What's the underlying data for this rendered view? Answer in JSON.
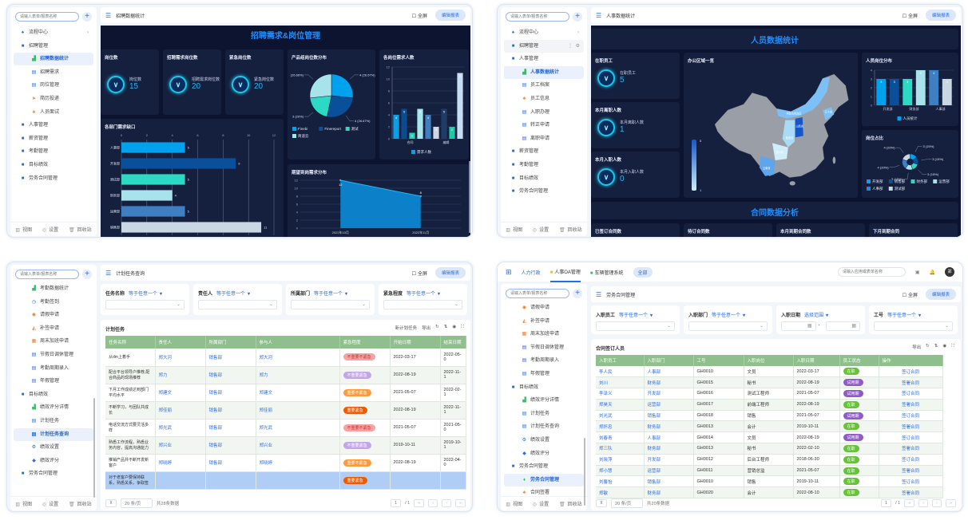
{
  "colors": {
    "accent": "#2d6be0",
    "dash_bg": "#0c1430",
    "card_bg": "#151f3e",
    "title_blue": "#1f8dff",
    "table_header": "#8fbf8c"
  },
  "common": {
    "search_placeholder": "请输入表单/报表名称",
    "fullscreen": "全屏",
    "footer": [
      "视图",
      "设置",
      "回收站"
    ]
  },
  "panel1": {
    "header_title": "招聘数据统计",
    "edit_button": "编辑报表",
    "sidebar": [
      {
        "label": "流程中心",
        "type": "link",
        "icon": "flow-icon",
        "chevron": "›"
      },
      {
        "label": "招聘管理",
        "type": "folder",
        "icon": "folder-icon"
      },
      {
        "label": "招聘数据统计",
        "type": "child",
        "icon": "chart-icon",
        "active": true
      },
      {
        "label": "招聘需求",
        "type": "child",
        "icon": "doc-icon"
      },
      {
        "label": "岗位管理",
        "type": "child",
        "icon": "doc-icon"
      },
      {
        "label": "简历投递",
        "type": "child",
        "icon": "send-icon"
      },
      {
        "label": "人员面试",
        "type": "child",
        "icon": "people-icon"
      },
      {
        "label": "人事管理",
        "type": "folder",
        "icon": "folder-icon"
      },
      {
        "label": "薪资管理",
        "type": "folder",
        "icon": "folder-icon"
      },
      {
        "label": "考勤管理",
        "type": "folder",
        "icon": "folder-icon"
      },
      {
        "label": "目标绩效",
        "type": "folder",
        "icon": "folder-icon"
      },
      {
        "label": "劳务合同管理",
        "type": "folder",
        "icon": "folder-icon"
      }
    ],
    "dash_title": "招聘需求&岗位管理",
    "kpis": [
      {
        "title": "岗位数",
        "label": "岗位数",
        "value": "15"
      },
      {
        "title": "招聘需求岗位数",
        "label": "招聘需求岗位数",
        "value": "20"
      },
      {
        "title": "紧急岗位数",
        "label": "紧急岗位数",
        "value": "20"
      }
    ]
  },
  "panel2": {
    "header_title": "人事数据统计",
    "edit_button": "编辑报表",
    "sidebar": [
      {
        "label": "流程中心",
        "type": "link",
        "icon": "flow-icon",
        "chevron": "›"
      },
      {
        "label": "招聘管理",
        "type": "folder",
        "icon": "folder-icon",
        "hover": true
      },
      {
        "label": "人事管理",
        "type": "folder",
        "icon": "folder-icon"
      },
      {
        "label": "人事数据统计",
        "type": "child",
        "icon": "chart-icon",
        "active": true
      },
      {
        "label": "员工档案",
        "type": "child",
        "icon": "doc-icon"
      },
      {
        "label": "员工信息",
        "type": "child",
        "icon": "people-icon"
      },
      {
        "label": "入职办理",
        "type": "child",
        "icon": "doc-icon"
      },
      {
        "label": "转正申请",
        "type": "child",
        "icon": "doc-icon"
      },
      {
        "label": "离职申请",
        "type": "child",
        "icon": "doc-icon"
      },
      {
        "label": "薪资管理",
        "type": "folder",
        "icon": "folder-icon"
      },
      {
        "label": "考勤管理",
        "type": "folder",
        "icon": "folder-icon"
      },
      {
        "label": "目标绩效",
        "type": "folder",
        "icon": "folder-icon"
      },
      {
        "label": "劳务合同管理",
        "type": "folder",
        "icon": "folder-icon"
      }
    ],
    "dash_title": "人员数据统计",
    "kpis": [
      {
        "title": "在职员工",
        "label": "在职员工",
        "value": "5"
      },
      {
        "title": "本月离职人数",
        "label": "本月离职人数",
        "value": "1"
      },
      {
        "title": "本月入职人数",
        "label": "本月入职人数",
        "value": "0"
      }
    ],
    "map": {
      "title": "办公区域一览",
      "scale_max": "5",
      "scale_min": "1",
      "labels": [
        "内蒙古自治区",
        "山西省",
        "陕西省",
        "四川省",
        "云南省",
        "辽宁省"
      ]
    },
    "section2_title": "合同数据分析",
    "contract_cards": [
      "已签订合同数",
      "待订合同数",
      "本月到期合同数",
      "下月到期合同"
    ]
  },
  "panel3": {
    "header_title": "计划任务查询",
    "edit_button": "编辑报表",
    "sidebar": [
      {
        "label": "考勤数据统计",
        "type": "child",
        "icon": "chart-icon"
      },
      {
        "label": "考勤签到",
        "type": "child",
        "icon": "clock-icon"
      },
      {
        "label": "请假申请",
        "type": "child",
        "icon": "leave-icon"
      },
      {
        "label": "补签申请",
        "type": "child",
        "icon": "bell-icon"
      },
      {
        "label": "周末加班申请",
        "type": "child",
        "icon": "calendar-icon"
      },
      {
        "label": "节假日调休管理",
        "type": "child",
        "icon": "doc-icon"
      },
      {
        "label": "考勤周期录入",
        "type": "child",
        "icon": "doc-icon"
      },
      {
        "label": "年假管理",
        "type": "child",
        "icon": "doc-icon"
      },
      {
        "label": "目标绩效",
        "type": "folder",
        "icon": "folder-icon"
      },
      {
        "label": "绩效评分详情",
        "type": "child",
        "icon": "chart-icon"
      },
      {
        "label": "计划任务",
        "type": "child",
        "icon": "doc-icon"
      },
      {
        "label": "计划任务查询",
        "type": "child",
        "icon": "doc-icon",
        "active": true
      },
      {
        "label": "绩效设置",
        "type": "child",
        "icon": "gear-icon"
      },
      {
        "label": "绩效评分",
        "type": "child",
        "icon": "score-icon"
      },
      {
        "label": "劳务合同管理",
        "type": "folder",
        "icon": "folder-icon"
      }
    ],
    "filters": [
      {
        "label": "任务名称",
        "op": "等于任意一个"
      },
      {
        "label": "责任人",
        "op": "等于任意一个"
      },
      {
        "label": "所属部门",
        "op": "等于任意一个"
      },
      {
        "label": "紧急程度",
        "op": "等于任意一个"
      }
    ],
    "table_title": "计划任务",
    "tools": [
      "新计划任务",
      "导出"
    ],
    "columns": [
      "任务名称",
      "责任人",
      "所属部门",
      "参与人",
      "紧急程度",
      "开始日期",
      "结束日期"
    ],
    "rows": [
      [
        "从dm上着手",
        "郑大河",
        "销售部",
        "郑大河",
        "不重要不紧急",
        "2022-03-17",
        "2022-05-0"
      ],
      [
        "配合平台领导户推荐,配合商品的现场推荐",
        "郑力",
        "销售部",
        "郑力",
        "不重要紧急",
        "2022-08-19",
        "2022-11-1"
      ],
      [
        "下月工作成绩达到部门平均水平",
        "郑建文",
        "销售部",
        "郑建文",
        "重要不紧急",
        "2021-05-07",
        "2022-02-1"
      ],
      [
        "不断学习，与团队共成长",
        "郑佳丽",
        "销售部",
        "郑佳丽",
        "重要紧急",
        "2022-08-19",
        "2022-11-1"
      ],
      [
        "电话交流方式要灵活多样",
        "郑光武",
        "销售部",
        "郑光武",
        "不重要不紧急",
        "2021-05-07",
        "2021-05-0"
      ],
      [
        "熟悉工作流程，熟悉业务内容，提高沟通能力",
        "郑兴业",
        "销售部",
        "郑兴业",
        "不重要紧急",
        "2019-10-11",
        "2019-10-1"
      ],
      [
        "推销产品并不断开发新客户",
        "郑晓婷",
        "销售部",
        "郑晓婷",
        "重要不紧急",
        "2022-08-19",
        "2022-04-0"
      ],
      [
        "对于老客户要保持联系，熟悉关系，争取签",
        "",
        "",
        "",
        "重要紧急",
        "",
        ""
      ]
    ],
    "page_size": "20 条/页",
    "total": "共28条数据",
    "page": "1",
    "pages": "/ 1"
  },
  "panel4": {
    "topnav": {
      "tabs": [
        "人力行政",
        "人事OA管理",
        "车辆管理系统"
      ],
      "all": "全部",
      "search_placeholder": "请输入应用或表单名称",
      "avatar": "郑"
    },
    "header_title": "劳务合同管理",
    "edit_button": "编辑报表",
    "sidebar": [
      {
        "label": "请假申请",
        "type": "child",
        "icon": "leave-icon"
      },
      {
        "label": "补签申请",
        "type": "child",
        "icon": "bell-icon"
      },
      {
        "label": "周末加班申请",
        "type": "child",
        "icon": "calendar-icon"
      },
      {
        "label": "节假日调休管理",
        "type": "child",
        "icon": "doc-icon"
      },
      {
        "label": "考勤周期录入",
        "type": "child",
        "icon": "doc-icon"
      },
      {
        "label": "年假管理",
        "type": "child",
        "icon": "doc-icon"
      },
      {
        "label": "目标绩效",
        "type": "folder",
        "icon": "folder-icon"
      },
      {
        "label": "绩效评分详情",
        "type": "child",
        "icon": "chart-icon"
      },
      {
        "label": "计划任务",
        "type": "child",
        "icon": "doc-icon"
      },
      {
        "label": "计划任务查询",
        "type": "child",
        "icon": "doc-icon"
      },
      {
        "label": "绩效设置",
        "type": "child",
        "icon": "gear-icon"
      },
      {
        "label": "绩效评分",
        "type": "child",
        "icon": "score-icon"
      },
      {
        "label": "劳务合同管理",
        "type": "folder",
        "icon": "folder-icon"
      },
      {
        "label": "劳务合同管理",
        "type": "child",
        "icon": "contract-icon",
        "active": true
      },
      {
        "label": "合同签署",
        "type": "child",
        "icon": "people-icon"
      }
    ],
    "filters": [
      {
        "label": "入职员工",
        "op": "等于任意一个"
      },
      {
        "label": "入职部门",
        "op": "等于任意一个"
      },
      {
        "label": "入职日期",
        "op": "选择范围"
      },
      {
        "label": "工号",
        "op": "等于任意一个"
      }
    ],
    "table_title": "合同签订人员",
    "tools": [
      "导出"
    ],
    "columns": [
      "入职员工",
      "入职部门",
      "工号",
      "入职岗位",
      "入职日期",
      "员工状态",
      "操作"
    ],
    "rows": [
      [
        "李人民",
        "人事部",
        "GH0010",
        "文员",
        "2022-03-17",
        "在职",
        "签订合同"
      ],
      [
        "刘川",
        "财务部",
        "GH0015",
        "秘书",
        "2022-08-19",
        "试用期",
        "签署合同"
      ],
      [
        "李泽义",
        "开发部",
        "GH0016",
        "测试工程师",
        "2021-05-07",
        "试用期",
        "签订合同"
      ],
      [
        "郑昊天",
        "运营部",
        "GH0017",
        "前端工程师",
        "2022-08-19",
        "在职",
        "签署合同"
      ],
      [
        "刘光武",
        "销售部",
        "GH0018",
        "销售",
        "2021-05-07",
        "试用期",
        "签订合同"
      ],
      [
        "郑怀忠",
        "财务部",
        "GH0013",
        "会计",
        "2019-10-11",
        "在职",
        "签署合同"
      ],
      [
        "刘春青",
        "人事部",
        "GH0014",
        "文员",
        "2022-08-19",
        "试用期",
        "签订合同"
      ],
      [
        "郑三队",
        "财务部",
        "GH0013",
        "秘书",
        "2022-02-10",
        "在职",
        "签署合同"
      ],
      [
        "刘晓萍",
        "开发部",
        "GH0012",
        "后台工程师",
        "2018-06-30",
        "在职",
        "签订合同"
      ],
      [
        "郑小慧",
        "运营部",
        "GH0011",
        "营销总监",
        "2021-05-07",
        "在职",
        "签署合同"
      ],
      [
        "刘馨怡",
        "销售部",
        "GH0010",
        "销售",
        "2019-10-11",
        "在职",
        "签订合同"
      ],
      [
        "郑敏",
        "财务部",
        "GH0020",
        "会计",
        "2022-08-10",
        "在职",
        "签署合同"
      ]
    ],
    "page_size": "20 条/页",
    "total": "共20条数据",
    "page": "1",
    "pages": "/ 1"
  },
  "chart_data": [
    {
      "id": "p1_pie",
      "type": "pie",
      "title": "产品组岗位数分布",
      "values": [
        4,
        4,
        3,
        4
      ],
      "labels": [
        "4 (26.67%)",
        "4 (26.67%)",
        "3 (20%)",
        "(26.66%)"
      ],
      "legend": [
        "Finebi",
        "Finereport",
        "测试",
        "简道云"
      ],
      "colors": [
        "#00a2ed",
        "#0a4f9a",
        "#2cd9c5",
        "#a8e3ec"
      ]
    },
    {
      "id": "p1_bar",
      "type": "bar",
      "title": "各岗位需求人数",
      "values": [
        4,
        5,
        1,
        5,
        4,
        2,
        5,
        2,
        11
      ],
      "x_labels": [
        "合同",
        "编辑"
      ],
      "ylim": [
        0,
        12
      ],
      "legend": [
        "需求人数"
      ],
      "colors": [
        "#0aa0e8",
        "#0b4c8f",
        "#29d3b5",
        "#a9e5ec",
        "#3e7fc1",
        "#ccd7e3",
        "#1f3d64",
        "#1dc9a6",
        "#c7def3"
      ]
    },
    {
      "id": "p1_hbar",
      "type": "bar",
      "orientation": "horizontal",
      "title": "各部门需求缺口",
      "categories": [
        "人事部",
        "开发部",
        "测试部",
        "财务部",
        "运营部",
        "销售部"
      ],
      "values": [
        5,
        9,
        5,
        4,
        5,
        11
      ],
      "xlim": [
        0,
        12
      ],
      "colors": [
        "#00a2ed",
        "#0a4f9a",
        "#2cd9c5",
        "#a8e3ec",
        "#3d7fc0",
        "#c9d6e3"
      ]
    },
    {
      "id": "p1_area",
      "type": "area",
      "title": "期望到岗需求分布",
      "categories": [
        "2022年10月",
        "2022年11月"
      ],
      "values": [
        12,
        8
      ],
      "ylim": [
        0,
        12
      ]
    },
    {
      "id": "p2_bar",
      "type": "bar",
      "title": "人员岗位分布",
      "values": [
        3,
        3,
        3,
        4,
        4,
        3
      ],
      "x_labels": [
        "开发部",
        "财务部",
        "人事部"
      ],
      "ylim": [
        0,
        4
      ],
      "legend": [
        "人员统计"
      ],
      "colors": [
        "#00a2ed",
        "#0a4f9a",
        "#2cd9c5",
        "#a8e3ec",
        "#3d7fc0",
        "#c9d6e3"
      ]
    },
    {
      "id": "p2_pie",
      "type": "pie",
      "title": "岗位占比",
      "values": [
        3,
        3,
        3,
        3,
        4,
        4
      ],
      "labels": [
        "3 (15%)",
        "3 (15%)",
        "3 (15%)",
        "3 (15%)",
        "4 (20%)",
        "4 (20%)"
      ],
      "legend": [
        "开发部",
        "销售部",
        "财务部",
        "运营部",
        "人事部",
        "测试部"
      ],
      "colors": [
        "#00a2ed",
        "#0a4f9a",
        "#2cd9c5",
        "#a8e3ec",
        "#3d7fc0",
        "#c9d6e3"
      ]
    }
  ]
}
